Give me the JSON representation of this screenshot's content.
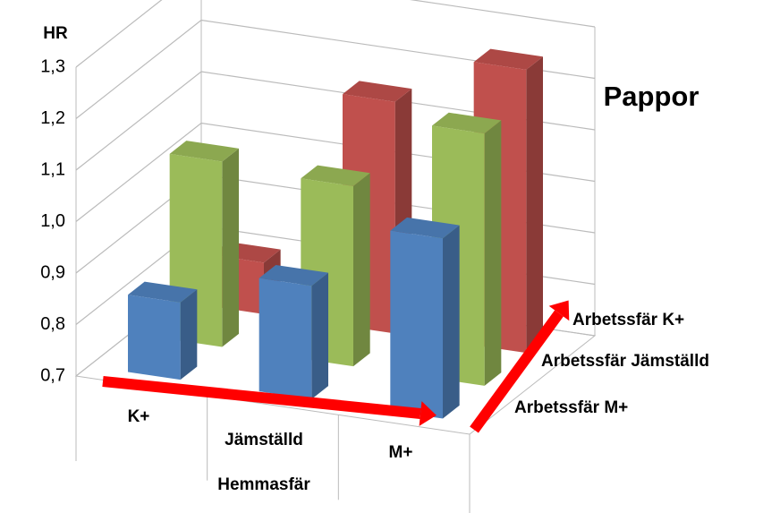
{
  "chart_data": {
    "type": "bar3d",
    "title": "Pappor",
    "y_label": "HR",
    "x_label": "Hemmasfär",
    "categories": [
      "K+",
      "Jämställd",
      "M+"
    ],
    "series": [
      {
        "name": "Arbetssfär M+",
        "color": "#4f81bd",
        "values": [
          0.85,
          0.92,
          1.05
        ]
      },
      {
        "name": "Arbetssfär Jämställd",
        "color": "#9bbb59",
        "values": [
          1.06,
          1.05,
          1.19
        ]
      },
      {
        "name": "Arbetssfär K+",
        "color": "#c0504d",
        "values": [
          0.8,
          1.15,
          1.25
        ]
      }
    ],
    "ylim": [
      0.7,
      1.3
    ],
    "yticks": [
      {
        "value": 0.7,
        "label": "0,7"
      },
      {
        "value": 0.8,
        "label": "0,8"
      },
      {
        "value": 0.9,
        "label": "0,9"
      },
      {
        "value": 1.0,
        "label": "1,0"
      },
      {
        "value": 1.1,
        "label": "1,1"
      },
      {
        "value": 1.2,
        "label": "1,2"
      },
      {
        "value": 1.3,
        "label": "1,3"
      }
    ],
    "grid": true
  }
}
